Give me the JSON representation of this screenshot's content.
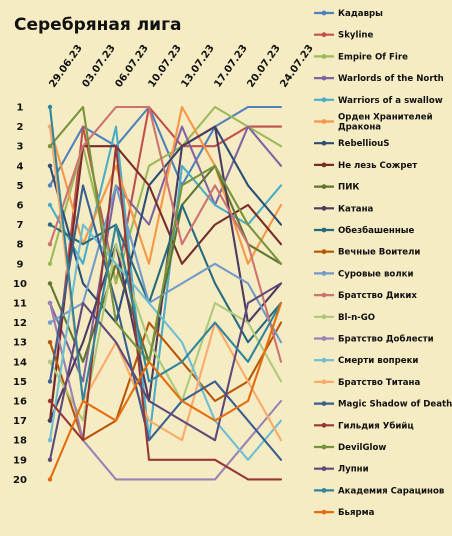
{
  "chart_data": {
    "type": "line",
    "title": "Серебряная лига",
    "xlabel": "",
    "ylabel": "",
    "categories": [
      "29.06.23",
      "03.07.23",
      "06.07.23",
      "10.07.23",
      "13.07.23",
      "17.07.23",
      "20.07.23",
      "24.07.23"
    ],
    "y_ticks": [
      "1",
      "2",
      "3",
      "4",
      "5",
      "6",
      "7",
      "8",
      "9",
      "10",
      "11",
      "12",
      "13",
      "14",
      "15",
      "16",
      "17",
      "18",
      "19",
      "20"
    ],
    "ylim": [
      1,
      20
    ],
    "y_inverted": true,
    "grid": false,
    "legend_position": "right",
    "series": [
      {
        "name": "Кадавры",
        "color": "#4f81bd",
        "values": [
          5,
          2,
          3,
          1,
          5,
          2,
          1,
          1
        ]
      },
      {
        "name": "Skyline",
        "color": "#c0504d",
        "values": [
          17,
          2,
          10,
          1,
          3,
          3,
          2,
          2
        ]
      },
      {
        "name": "Empire Of Fire",
        "color": "#9bbb59",
        "values": [
          9,
          3,
          10,
          4,
          3,
          1,
          2,
          3
        ]
      },
      {
        "name": "Warlords of the North",
        "color": "#8064a2",
        "values": [
          11,
          15,
          5,
          7,
          2,
          6,
          2,
          4
        ]
      },
      {
        "name": "Warriors of a swallow",
        "color": "#4bacc6",
        "values": [
          6,
          9,
          2,
          18,
          4,
          6,
          7,
          5
        ]
      },
      {
        "name": "Орден Хранителей Дракона",
        "color": "#f79646",
        "values": [
          2,
          8,
          4,
          9,
          1,
          4,
          9,
          6
        ]
      },
      {
        "name": "RebelliouS",
        "color": "#2c4d75",
        "values": [
          4,
          10,
          12,
          5,
          3,
          2,
          5,
          7
        ]
      },
      {
        "name": "Не лезь Сожрет",
        "color": "#772c2a",
        "values": [
          17,
          3,
          3,
          5,
          9,
          7,
          6,
          8
        ]
      },
      {
        "name": "ПИК",
        "color": "#5f7530",
        "values": [
          10,
          14,
          9,
          14,
          6,
          4,
          8,
          9
        ]
      },
      {
        "name": "Катана",
        "color": "#4d3b62",
        "values": [
          17,
          13,
          8,
          16,
          3,
          2,
          12,
          10
        ]
      },
      {
        "name": "Обезбашенные",
        "color": "#276a7c",
        "values": [
          7,
          8,
          7,
          11,
          6,
          10,
          13,
          11
        ]
      },
      {
        "name": "Вечные Воители",
        "color": "#b65708",
        "values": [
          13,
          18,
          17,
          12,
          14,
          16,
          15,
          12
        ]
      },
      {
        "name": "Суровые волки",
        "color": "#729aca",
        "values": [
          12,
          11,
          5,
          11,
          10,
          9,
          10,
          13
        ]
      },
      {
        "name": "Братство Диких",
        "color": "#cd7371",
        "values": [
          8,
          3,
          1,
          1,
          8,
          5,
          8,
          14
        ]
      },
      {
        "name": "Bl-n-GO",
        "color": "#afc97a",
        "values": [
          14,
          17,
          8,
          13,
          16,
          11,
          12,
          15
        ]
      },
      {
        "name": "Братство Доблести",
        "color": "#9983b5",
        "values": [
          11,
          18,
          20,
          20,
          20,
          20,
          18,
          16
        ]
      },
      {
        "name": "Смерти вопреки",
        "color": "#6fbdd1",
        "values": [
          18,
          7,
          9,
          11,
          13,
          17,
          19,
          17
        ]
      },
      {
        "name": "Братство Титана",
        "color": "#f9ab6b",
        "values": [
          2,
          16,
          13,
          17,
          18,
          12,
          15,
          18
        ]
      },
      {
        "name": "Magic Shadow of Death",
        "color": "#3a5f8f",
        "values": [
          15,
          5,
          11,
          18,
          16,
          15,
          17,
          19
        ]
      },
      {
        "name": "Гильдия Убийц",
        "color": "#953735",
        "values": [
          16,
          18,
          3,
          19,
          19,
          19,
          20,
          20
        ]
      },
      {
        "name": "DevilGlow",
        "color": "#77933c",
        "values": [
          3,
          1,
          12,
          14,
          5,
          4,
          7,
          9
        ]
      },
      {
        "name": "Лупни",
        "color": "#5f497a",
        "values": [
          19,
          11,
          13,
          16,
          17,
          18,
          11,
          10
        ]
      },
      {
        "name": "Академия Сарацинов",
        "color": "#31859c",
        "values": [
          1,
          16,
          7,
          15,
          14,
          12,
          14,
          11
        ]
      },
      {
        "name": "Бьярма",
        "color": "#e46c0a",
        "values": [
          20,
          16,
          17,
          14,
          16,
          17,
          16,
          11
        ]
      }
    ]
  }
}
